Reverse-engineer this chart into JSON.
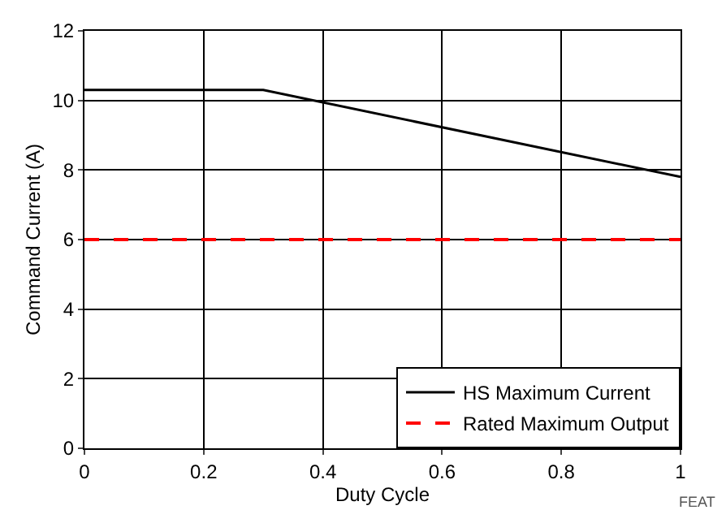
{
  "chart_data": {
    "type": "line",
    "xlabel": "Duty Cycle",
    "ylabel": "Command Current (A)",
    "series": [
      {
        "name": "HS Maximum Current",
        "color": "#000000",
        "x": [
          0,
          0.3,
          1
        ],
        "values": [
          10.3,
          10.3,
          7.8
        ],
        "line_style": "solid"
      },
      {
        "name": "Rated Maximum Output",
        "color": "#ff0000",
        "x": [
          0,
          1
        ],
        "values": [
          6,
          6
        ],
        "line_style": "dashed"
      }
    ],
    "xlim": [
      0,
      1
    ],
    "xticks": [
      0,
      0.2,
      0.4,
      0.6,
      0.8,
      1
    ],
    "ylim": [
      0,
      12
    ],
    "yticks": [
      0,
      2,
      4,
      6,
      8,
      10,
      12
    ],
    "grid": true,
    "legend": "bottom right",
    "marker": "none",
    "annotations": [
      "FEAT"
    ]
  }
}
